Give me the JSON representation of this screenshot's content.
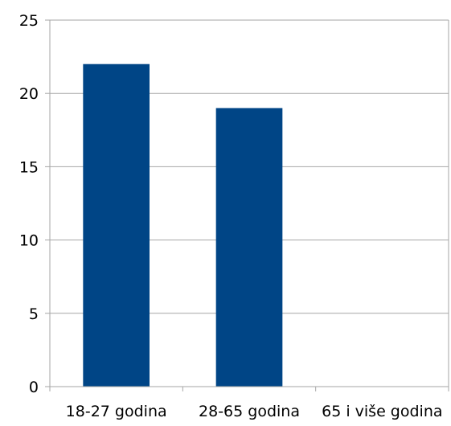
{
  "chart_data": {
    "type": "bar",
    "categories": [
      "18-27 godina",
      "28-65 godina",
      "65 i više godina"
    ],
    "values": [
      22,
      19,
      0
    ],
    "ylim": [
      0,
      25
    ],
    "yticks": [
      "0",
      "5",
      "10",
      "15",
      "20",
      "25"
    ],
    "grid": true,
    "legend": "none",
    "bar_color": "#004586",
    "grid_color": "#a6a6a6"
  }
}
